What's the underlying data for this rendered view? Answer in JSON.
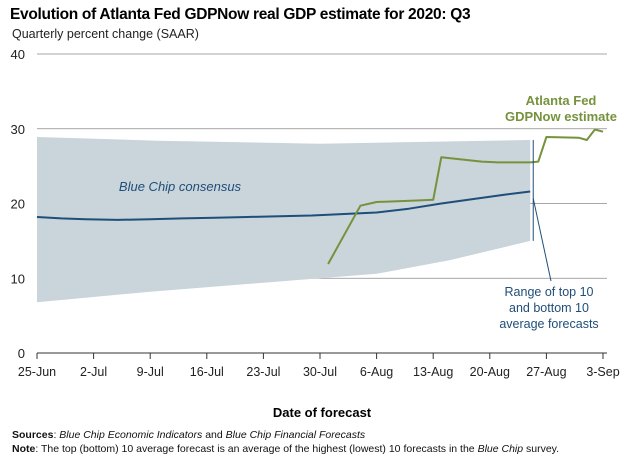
{
  "title": "Evolution of Atlanta Fed GDPNow real GDP estimate for 2020: Q3",
  "subtitle": "Quarterly percent change (SAAR)",
  "footer": {
    "sources_label": "Sources",
    "sources_text_1": "Blue Chip Economic Indicators",
    "sources_text_2": " and ",
    "sources_text_3": "Blue Chip Financial Forecasts",
    "note_label": "Note",
    "note_text_1": ": The top (bottom) 10 average forecast is an average of the highest (lowest) 10 forecasts in the ",
    "note_text_2": "Blue Chip",
    "note_text_3": " survey."
  },
  "chart_data": {
    "type": "line",
    "title": "Evolution of Atlanta Fed GDPNow real GDP estimate for 2020: Q3",
    "subtitle": "Quarterly percent change (SAAR)",
    "xlabel": "Date of forecast",
    "ylabel": "",
    "x_ticks": [
      "25-Jun",
      "2-Jul",
      "9-Jul",
      "16-Jul",
      "23-Jul",
      "30-Jul",
      "6-Aug",
      "13-Aug",
      "20-Aug",
      "27-Aug",
      "3-Sep"
    ],
    "ylim": [
      0,
      40
    ],
    "y_ticks": [
      0,
      10,
      20,
      30,
      40
    ],
    "grid": "horizontal",
    "series": [
      {
        "name": "Blue Chip consensus",
        "color": "#1f4e79",
        "points": [
          [
            "25-Jun",
            18.2
          ],
          [
            "28-Jun",
            18.0
          ],
          [
            "1-Jul",
            17.9
          ],
          [
            "5-Jul",
            17.8
          ],
          [
            "9-Jul",
            17.9
          ],
          [
            "13-Jul",
            18.0
          ],
          [
            "17-Jul",
            18.1
          ],
          [
            "21-Jul",
            18.2
          ],
          [
            "25-Jul",
            18.3
          ],
          [
            "29-Jul",
            18.4
          ],
          [
            "2-Aug",
            18.6
          ],
          [
            "6-Aug",
            18.8
          ],
          [
            "10-Aug",
            19.3
          ],
          [
            "14-Aug",
            20.0
          ],
          [
            "18-Aug",
            20.6
          ],
          [
            "22-Aug",
            21.2
          ],
          [
            "25-Aug",
            21.6
          ]
        ]
      },
      {
        "name": "Atlanta Fed GDPNow estimate",
        "color": "#76923c",
        "points": [
          [
            "31-Jul",
            11.9
          ],
          [
            "4-Aug",
            19.7
          ],
          [
            "6-Aug",
            20.2
          ],
          [
            "11-Aug",
            20.4
          ],
          [
            "13-Aug",
            20.5
          ],
          [
            "14-Aug",
            26.2
          ],
          [
            "19-Aug",
            25.6
          ],
          [
            "21-Aug",
            25.5
          ],
          [
            "25-Aug",
            25.5
          ],
          [
            "26-Aug",
            25.6
          ],
          [
            "27-Aug",
            28.9
          ],
          [
            "31-Aug",
            28.8
          ],
          [
            "1-Sep",
            28.5
          ],
          [
            "2-Sep",
            29.9
          ],
          [
            "3-Sep",
            29.6
          ]
        ]
      }
    ],
    "band": {
      "name": "Range of top 10 and bottom 10 average forecasts",
      "color": "#c9d4db",
      "upper": [
        [
          "25-Jun",
          28.9
        ],
        [
          "10-Jul",
          28.4
        ],
        [
          "30-Jul",
          28.0
        ],
        [
          "25-Aug",
          28.5
        ]
      ],
      "lower": [
        [
          "25-Jun",
          6.8
        ],
        [
          "9-Jul",
          8.2
        ],
        [
          "23-Jul",
          9.4
        ],
        [
          "6-Aug",
          10.6
        ],
        [
          "15-Aug",
          12.4
        ],
        [
          "25-Aug",
          15.0
        ]
      ]
    },
    "annotations": [
      {
        "text": "Blue Chip consensus"
      },
      {
        "lines": [
          "Atlanta Fed",
          "GDPNow estimate"
        ]
      },
      {
        "lines": [
          "Range of top 10",
          "and bottom 10",
          "average forecasts"
        ]
      }
    ]
  }
}
